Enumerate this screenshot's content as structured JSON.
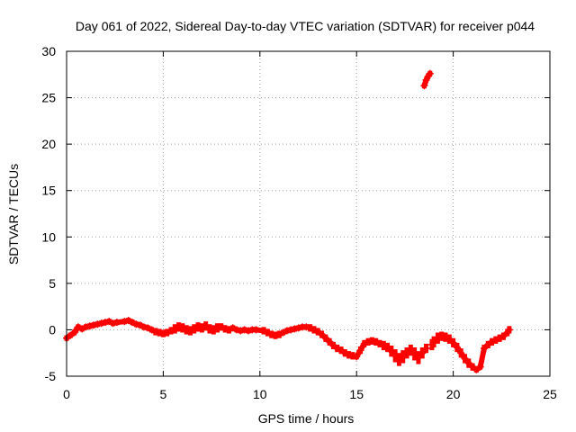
{
  "chart_data": {
    "type": "scatter",
    "title": "Day 061 of 2022, Sidereal Day-to-day VTEC variation (SDTVAR) for receiver p044",
    "xlabel": "GPS time / hours",
    "ylabel": "SDTVAR / TECUs",
    "xlim": [
      0,
      25
    ],
    "ylim": [
      -5,
      30
    ],
    "xticks": [
      "0",
      "5",
      "10",
      "15",
      "20",
      "25"
    ],
    "yticks": [
      "-5",
      "0",
      "5",
      "10",
      "15",
      "20",
      "25",
      "30"
    ],
    "grid": true,
    "legend": "none",
    "series_color": "#ff0000",
    "series": [
      {
        "name": "SDTVAR",
        "marker": "+",
        "x": [
          0.0,
          0.2,
          0.4,
          0.5,
          0.6,
          0.8,
          1.0,
          1.2,
          1.4,
          1.6,
          1.8,
          2.0,
          2.2,
          2.4,
          2.6,
          3.0,
          3.2,
          3.4,
          3.6,
          3.8,
          4.0,
          4.2,
          4.4,
          4.6,
          4.8,
          5.0,
          5.2,
          5.4,
          5.6,
          5.8,
          6.0,
          6.2,
          6.4,
          6.6,
          6.8,
          7.0,
          7.2,
          7.4,
          7.6,
          7.8,
          8.0,
          8.2,
          8.4,
          8.6,
          8.8,
          9.0,
          9.2,
          9.4,
          9.6,
          9.8,
          10.2,
          10.4,
          10.6,
          10.8,
          11.0,
          11.2,
          11.4,
          11.6,
          11.8,
          12.0,
          12.2,
          12.4,
          12.6,
          12.8,
          13.0,
          13.2,
          13.4,
          13.6,
          13.8,
          14.0,
          14.2,
          14.4,
          14.6,
          14.8,
          15.0,
          15.2,
          15.4,
          15.6,
          15.8,
          16.0,
          16.2,
          16.4,
          16.6,
          16.8,
          17.0,
          17.2,
          17.4,
          17.6,
          17.8,
          18.0,
          18.2,
          18.4,
          18.6,
          18.5,
          18.6,
          18.7,
          18.8,
          18.9,
          19.0,
          19.2,
          19.4,
          19.6,
          19.8,
          20.0,
          20.2,
          20.4,
          20.6,
          20.8,
          21.0,
          21.2,
          21.4,
          21.6,
          21.8,
          22.0,
          22.2,
          22.4,
          22.6,
          22.8,
          22.9
        ],
        "y": [
          -0.9,
          -0.6,
          -0.3,
          0.0,
          0.3,
          0.1,
          0.3,
          0.4,
          0.5,
          0.6,
          0.7,
          0.8,
          0.9,
          0.7,
          0.8,
          0.9,
          1.0,
          0.8,
          0.6,
          0.5,
          0.3,
          0.2,
          0.0,
          -0.2,
          -0.3,
          -0.4,
          -0.3,
          -0.1,
          0.1,
          0.3,
          0.2,
          0.0,
          -0.1,
          0.1,
          0.3,
          0.2,
          0.4,
          0.1,
          0.0,
          0.2,
          0.3,
          0.1,
          0.0,
          0.2,
          0.0,
          -0.1,
          0.0,
          -0.1,
          0.0,
          0.0,
          -0.1,
          -0.3,
          -0.5,
          -0.6,
          -0.5,
          -0.3,
          -0.1,
          0.0,
          0.1,
          0.2,
          0.3,
          0.3,
          0.2,
          0.0,
          -0.2,
          -0.5,
          -0.9,
          -1.3,
          -1.7,
          -2.0,
          -2.2,
          -2.5,
          -2.7,
          -2.8,
          -2.9,
          -2.2,
          -1.5,
          -1.3,
          -1.2,
          -1.3,
          -1.5,
          -1.7,
          -1.9,
          -2.3,
          -2.8,
          -3.2,
          -2.9,
          -2.5,
          -2.2,
          -2.6,
          -3.0,
          -2.5,
          -2.0,
          26.3,
          26.9,
          27.3,
          27.6,
          -1.6,
          -1.3,
          -0.9,
          -0.7,
          -0.8,
          -1.0,
          -1.4,
          -1.9,
          -2.5,
          -3.1,
          -3.6,
          -4.0,
          -4.3,
          -4.0,
          -2.0,
          -1.6,
          -1.3,
          -1.1,
          -0.9,
          -0.7,
          -0.3,
          0.0
        ],
        "spread": [
          0.3,
          0.3,
          0.3,
          0.3,
          0.3,
          0.3,
          0.3,
          0.3,
          0.3,
          0.3,
          0.3,
          0.3,
          0.3,
          0.3,
          0.3,
          0.3,
          0.3,
          0.3,
          0.3,
          0.3,
          0.3,
          0.3,
          0.3,
          0.4,
          0.4,
          0.4,
          0.4,
          0.4,
          0.5,
          0.5,
          0.5,
          0.5,
          0.5,
          0.5,
          0.5,
          0.5,
          0.5,
          0.5,
          0.5,
          0.5,
          0.4,
          0.4,
          0.4,
          0.3,
          0.3,
          0.3,
          0.3,
          0.3,
          0.3,
          0.3,
          0.4,
          0.4,
          0.4,
          0.4,
          0.4,
          0.3,
          0.3,
          0.3,
          0.3,
          0.3,
          0.3,
          0.3,
          0.4,
          0.4,
          0.4,
          0.4,
          0.4,
          0.4,
          0.4,
          0.4,
          0.4,
          0.4,
          0.4,
          0.4,
          0.3,
          0.4,
          0.4,
          0.4,
          0.4,
          0.4,
          0.4,
          0.5,
          0.5,
          0.6,
          0.7,
          0.7,
          0.7,
          0.6,
          0.6,
          0.7,
          0.7,
          0.6,
          0.5,
          0.3,
          0.3,
          0.3,
          0.3,
          0.6,
          0.6,
          0.6,
          0.5,
          0.5,
          0.5,
          0.5,
          0.5,
          0.5,
          0.5,
          0.5,
          0.4,
          0.3,
          0.3,
          0.4,
          0.4,
          0.4,
          0.4,
          0.4,
          0.4,
          0.4,
          0.4
        ]
      }
    ]
  }
}
